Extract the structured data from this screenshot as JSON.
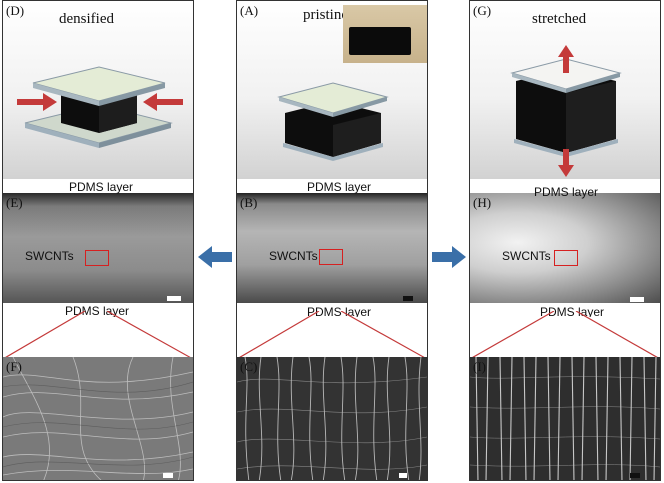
{
  "columns": {
    "densified": {
      "top_tag": "(D)",
      "top_title": "densified",
      "mid_tag": "(E)",
      "mid_top_label": "PDMS layer",
      "mid_center_label": "SWCNTs",
      "mid_bottom_label": "PDMS layer",
      "bot_tag": "(F)"
    },
    "pristine": {
      "top_tag": "(A)",
      "top_title": "pristine",
      "mid_tag": "(B)",
      "mid_top_label": "PDMS layer",
      "mid_center_label": "SWCNTs",
      "mid_bottom_label": "PDMS layer",
      "bot_tag": "(C)"
    },
    "stretched": {
      "top_tag": "(G)",
      "top_title": "stretched",
      "mid_tag": "(H)",
      "mid_top_label": "PDMS layer",
      "mid_center_label": "SWCNTs",
      "mid_bottom_label": "PDMS layer",
      "bot_tag": "(I)"
    }
  },
  "icons": {
    "compress_arrows": "arrow-right-left-icon",
    "stretch_arrows": "arrow-up-down-icon",
    "transition_arrows": "arrow-left-right-icon"
  },
  "colors": {
    "arrow_red": "#c43a3a",
    "arrow_blue": "#3a6fa8",
    "zoom_box": "#d62020",
    "pdms_plate": "#dfe8d8",
    "cnt_block": "#111111"
  }
}
